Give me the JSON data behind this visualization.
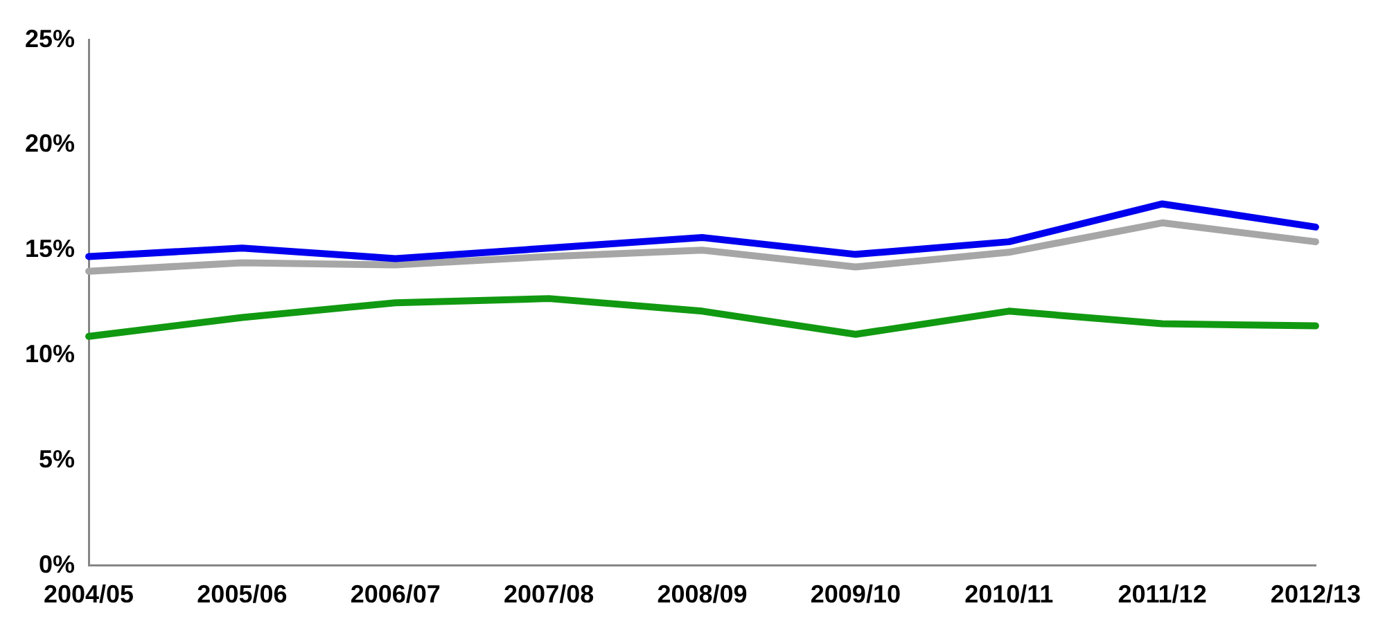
{
  "chart_data": {
    "type": "line",
    "categories": [
      "2004/05",
      "2005/06",
      "2006/07",
      "2007/08",
      "2008/09",
      "2009/10",
      "2010/11",
      "2011/12",
      "2012/13"
    ],
    "series": [
      {
        "color": "#0000ee",
        "values": [
          14.7,
          15.1,
          14.6,
          15.1,
          15.6,
          14.8,
          15.4,
          17.2,
          16.1
        ]
      },
      {
        "color": "#a6a6a6",
        "values": [
          14.0,
          14.4,
          14.3,
          14.7,
          15.0,
          14.2,
          14.9,
          16.3,
          15.4
        ]
      },
      {
        "color": "#119911",
        "values": [
          10.9,
          11.8,
          12.5,
          12.7,
          12.1,
          11.0,
          12.1,
          11.5,
          11.4
        ]
      }
    ],
    "ylim": [
      0,
      25
    ],
    "yticks": [
      {
        "value": 0,
        "label": "0%"
      },
      {
        "value": 5,
        "label": "5%"
      },
      {
        "value": 10,
        "label": "10%"
      },
      {
        "value": 15,
        "label": "15%"
      },
      {
        "value": 20,
        "label": "20%"
      },
      {
        "value": 25,
        "label": "25%"
      }
    ],
    "grid": false,
    "legend": false,
    "marker": "none",
    "line_style": "solid"
  }
}
